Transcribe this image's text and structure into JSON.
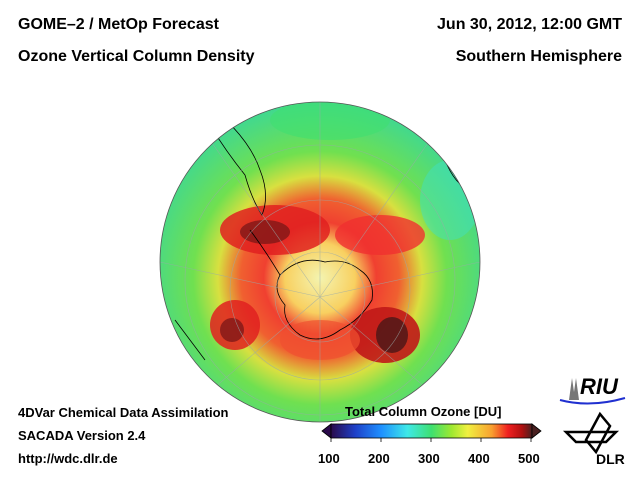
{
  "header": {
    "title_left_1": "GOME–2 / MetOp Forecast",
    "title_left_2": "Ozone Vertical Column Density",
    "title_right_1": "Jun 30, 2012, 12:00 GMT",
    "title_right_2": "Southern Hemisphere"
  },
  "footer": {
    "line1": "4DVar Chemical Data Assimilation",
    "line2": "SACADA Version 2.4",
    "line3": "http://wdc.dlr.de"
  },
  "colorbar": {
    "title": "Total Column Ozone [DU]",
    "ticks": [
      "100",
      "200",
      "300",
      "400",
      "500"
    ],
    "min": 100,
    "max": 500,
    "colors": [
      "#2a0a4a",
      "#1e40c8",
      "#1e90ff",
      "#3ee8e8",
      "#3ee070",
      "#9ee830",
      "#f0f040",
      "#f8a030",
      "#f02020",
      "#b01010",
      "#4a2020"
    ]
  },
  "logos": {
    "riu": "RIU",
    "dlr": "DLR"
  }
}
